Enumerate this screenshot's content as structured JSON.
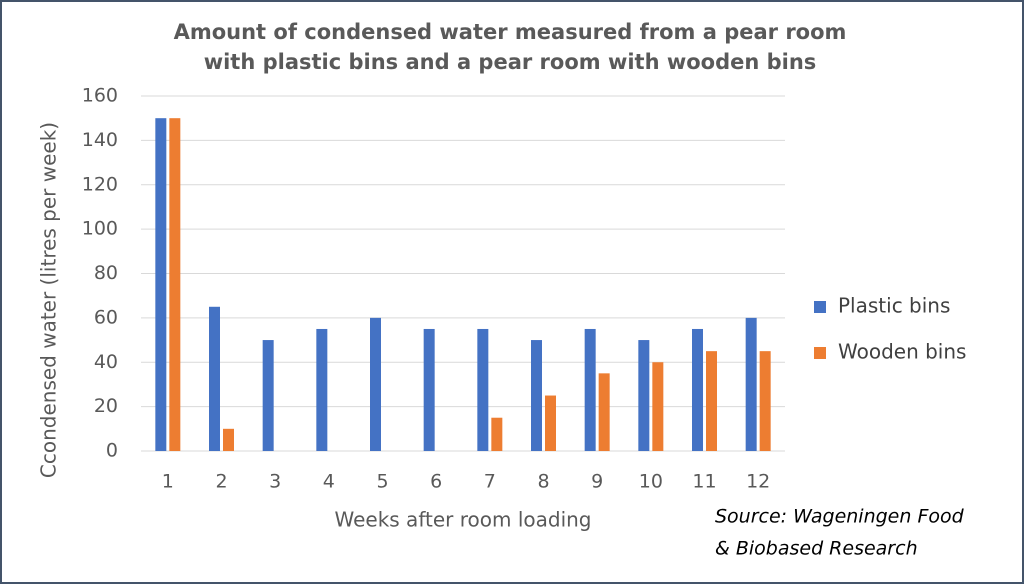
{
  "chart_data": {
    "type": "bar",
    "title": [
      "Amount of condensed water measured from a pear room",
      "with plastic bins and a pear room with wooden bins"
    ],
    "y_label": "Ccondensed water (litres per week)",
    "x_label": "Weeks after room loading",
    "source": [
      "Source: Wageningen Food",
      "& Biobased Research"
    ],
    "categories": [
      "1",
      "2",
      "3",
      "4",
      "5",
      "6",
      "7",
      "8",
      "9",
      "10",
      "11",
      "12"
    ],
    "series": [
      {
        "name": "Plastic bins",
        "color": "#4472c4",
        "values": [
          150,
          65,
          50,
          55,
          60,
          55,
          55,
          50,
          55,
          50,
          55,
          60
        ]
      },
      {
        "name": "Wooden bins",
        "color": "#ed7d31",
        "values": [
          150,
          10,
          0,
          0,
          0,
          0,
          15,
          25,
          35,
          40,
          45,
          45
        ]
      }
    ],
    "ylim": [
      0,
      160
    ],
    "yticks": [
      0,
      20,
      40,
      60,
      80,
      100,
      120,
      140,
      160
    ],
    "grid": true,
    "legend": "right"
  }
}
